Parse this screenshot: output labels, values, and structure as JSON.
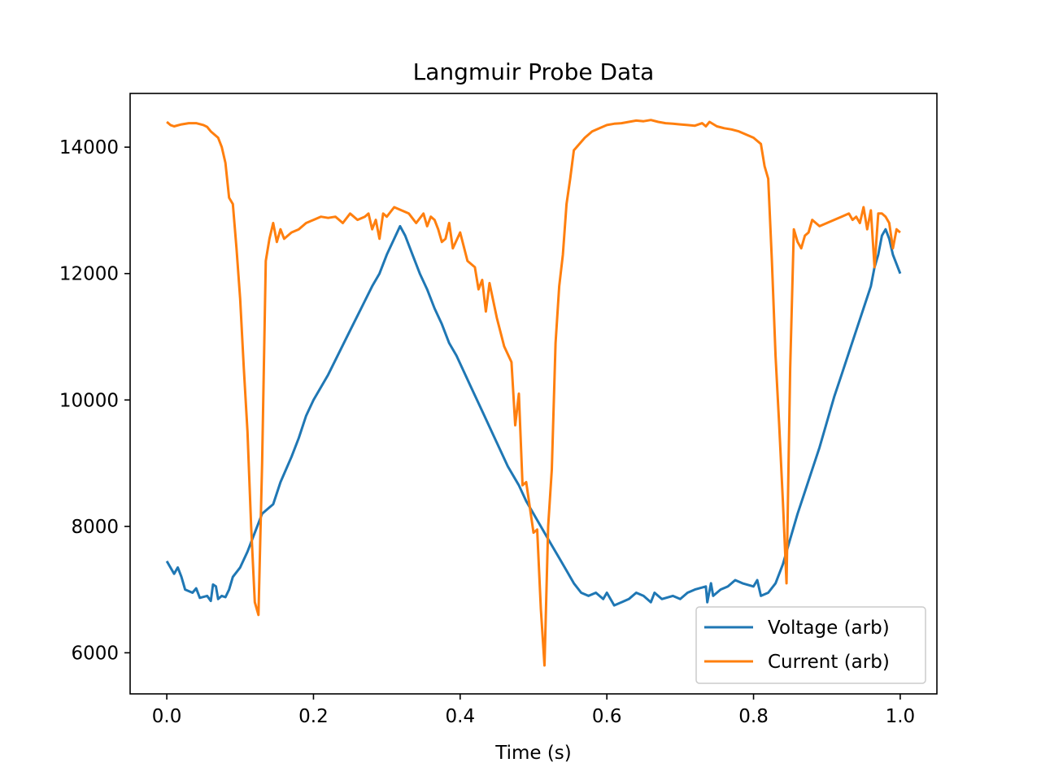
{
  "chart_data": {
    "type": "line",
    "title": "Langmuir Probe Data",
    "xlabel": "Time (s)",
    "ylabel": "",
    "xlim": [
      -0.05,
      1.05
    ],
    "ylim": [
      5350,
      14850
    ],
    "xticks": [
      0.0,
      0.2,
      0.4,
      0.6,
      0.8,
      1.0
    ],
    "xtick_labels": [
      "0.0",
      "0.2",
      "0.4",
      "0.6",
      "0.8",
      "1.0"
    ],
    "yticks": [
      6000,
      8000,
      10000,
      12000,
      14000
    ],
    "ytick_labels": [
      "6000",
      "8000",
      "10000",
      "12000",
      "14000"
    ],
    "grid": false,
    "legend": "lower right",
    "series": [
      {
        "name": "Voltage (arb)",
        "color": "#1f77b4",
        "points": [
          [
            0.0,
            7450
          ],
          [
            0.01,
            7250
          ],
          [
            0.015,
            7350
          ],
          [
            0.02,
            7200
          ],
          [
            0.025,
            7000
          ],
          [
            0.035,
            6950
          ],
          [
            0.04,
            7020
          ],
          [
            0.045,
            6870
          ],
          [
            0.055,
            6900
          ],
          [
            0.06,
            6820
          ],
          [
            0.063,
            7080
          ],
          [
            0.067,
            7050
          ],
          [
            0.07,
            6850
          ],
          [
            0.075,
            6900
          ],
          [
            0.08,
            6880
          ],
          [
            0.085,
            7000
          ],
          [
            0.09,
            7200
          ],
          [
            0.1,
            7350
          ],
          [
            0.11,
            7600
          ],
          [
            0.12,
            7900
          ],
          [
            0.13,
            8200
          ],
          [
            0.14,
            8300
          ],
          [
            0.145,
            8350
          ],
          [
            0.155,
            8700
          ],
          [
            0.17,
            9100
          ],
          [
            0.18,
            9400
          ],
          [
            0.19,
            9750
          ],
          [
            0.2,
            10000
          ],
          [
            0.22,
            10400
          ],
          [
            0.235,
            10750
          ],
          [
            0.25,
            11100
          ],
          [
            0.265,
            11450
          ],
          [
            0.28,
            11800
          ],
          [
            0.29,
            12000
          ],
          [
            0.3,
            12300
          ],
          [
            0.31,
            12550
          ],
          [
            0.318,
            12750
          ],
          [
            0.325,
            12600
          ],
          [
            0.335,
            12300
          ],
          [
            0.345,
            12000
          ],
          [
            0.355,
            11750
          ],
          [
            0.365,
            11450
          ],
          [
            0.375,
            11200
          ],
          [
            0.385,
            10900
          ],
          [
            0.395,
            10700
          ],
          [
            0.405,
            10450
          ],
          [
            0.415,
            10200
          ],
          [
            0.425,
            9950
          ],
          [
            0.435,
            9700
          ],
          [
            0.445,
            9450
          ],
          [
            0.455,
            9200
          ],
          [
            0.465,
            8950
          ],
          [
            0.48,
            8650
          ],
          [
            0.49,
            8400
          ],
          [
            0.5,
            8200
          ],
          [
            0.51,
            8000
          ],
          [
            0.525,
            7700
          ],
          [
            0.535,
            7500
          ],
          [
            0.545,
            7300
          ],
          [
            0.555,
            7100
          ],
          [
            0.565,
            6950
          ],
          [
            0.575,
            6900
          ],
          [
            0.585,
            6950
          ],
          [
            0.595,
            6850
          ],
          [
            0.6,
            6950
          ],
          [
            0.61,
            6750
          ],
          [
            0.62,
            6800
          ],
          [
            0.63,
            6850
          ],
          [
            0.64,
            6950
          ],
          [
            0.65,
            6900
          ],
          [
            0.66,
            6800
          ],
          [
            0.665,
            6950
          ],
          [
            0.675,
            6850
          ],
          [
            0.69,
            6900
          ],
          [
            0.7,
            6850
          ],
          [
            0.71,
            6950
          ],
          [
            0.72,
            7000
          ],
          [
            0.735,
            7050
          ],
          [
            0.737,
            6800
          ],
          [
            0.742,
            7100
          ],
          [
            0.745,
            6900
          ],
          [
            0.755,
            7000
          ],
          [
            0.765,
            7050
          ],
          [
            0.775,
            7150
          ],
          [
            0.785,
            7100
          ],
          [
            0.8,
            7050
          ],
          [
            0.805,
            7150
          ],
          [
            0.81,
            6900
          ],
          [
            0.82,
            6950
          ],
          [
            0.83,
            7100
          ],
          [
            0.84,
            7400
          ],
          [
            0.85,
            7800
          ],
          [
            0.86,
            8200
          ],
          [
            0.87,
            8550
          ],
          [
            0.88,
            8900
          ],
          [
            0.89,
            9250
          ],
          [
            0.9,
            9650
          ],
          [
            0.91,
            10050
          ],
          [
            0.92,
            10400
          ],
          [
            0.93,
            10750
          ],
          [
            0.94,
            11100
          ],
          [
            0.95,
            11450
          ],
          [
            0.96,
            11800
          ],
          [
            0.965,
            12100
          ],
          [
            0.97,
            12300
          ],
          [
            0.975,
            12600
          ],
          [
            0.98,
            12700
          ],
          [
            0.985,
            12550
          ],
          [
            0.99,
            12300
          ],
          [
            1.0,
            12000
          ]
        ]
      },
      {
        "name": "Current (arb)",
        "color": "#ff7f0e",
        "points": [
          [
            0.0,
            14400
          ],
          [
            0.005,
            14350
          ],
          [
            0.01,
            14330
          ],
          [
            0.02,
            14360
          ],
          [
            0.03,
            14380
          ],
          [
            0.04,
            14380
          ],
          [
            0.05,
            14350
          ],
          [
            0.055,
            14320
          ],
          [
            0.06,
            14250
          ],
          [
            0.065,
            14200
          ],
          [
            0.07,
            14150
          ],
          [
            0.075,
            14000
          ],
          [
            0.08,
            13750
          ],
          [
            0.085,
            13200
          ],
          [
            0.09,
            13100
          ],
          [
            0.095,
            12400
          ],
          [
            0.1,
            11600
          ],
          [
            0.105,
            10500
          ],
          [
            0.11,
            9500
          ],
          [
            0.115,
            8000
          ],
          [
            0.12,
            6800
          ],
          [
            0.125,
            6600
          ],
          [
            0.13,
            9000
          ],
          [
            0.135,
            12200
          ],
          [
            0.14,
            12550
          ],
          [
            0.145,
            12800
          ],
          [
            0.15,
            12500
          ],
          [
            0.155,
            12700
          ],
          [
            0.16,
            12550
          ],
          [
            0.17,
            12650
          ],
          [
            0.18,
            12700
          ],
          [
            0.19,
            12800
          ],
          [
            0.2,
            12850
          ],
          [
            0.21,
            12900
          ],
          [
            0.22,
            12880
          ],
          [
            0.23,
            12900
          ],
          [
            0.24,
            12800
          ],
          [
            0.25,
            12950
          ],
          [
            0.26,
            12850
          ],
          [
            0.27,
            12900
          ],
          [
            0.275,
            12950
          ],
          [
            0.28,
            12700
          ],
          [
            0.285,
            12850
          ],
          [
            0.29,
            12550
          ],
          [
            0.295,
            12950
          ],
          [
            0.3,
            12900
          ],
          [
            0.31,
            13050
          ],
          [
            0.32,
            13000
          ],
          [
            0.33,
            12950
          ],
          [
            0.34,
            12800
          ],
          [
            0.35,
            12950
          ],
          [
            0.355,
            12750
          ],
          [
            0.36,
            12900
          ],
          [
            0.365,
            12850
          ],
          [
            0.37,
            12700
          ],
          [
            0.375,
            12500
          ],
          [
            0.38,
            12550
          ],
          [
            0.385,
            12800
          ],
          [
            0.39,
            12400
          ],
          [
            0.4,
            12650
          ],
          [
            0.41,
            12200
          ],
          [
            0.42,
            12100
          ],
          [
            0.425,
            11750
          ],
          [
            0.43,
            11900
          ],
          [
            0.435,
            11400
          ],
          [
            0.44,
            11850
          ],
          [
            0.45,
            11300
          ],
          [
            0.46,
            10850
          ],
          [
            0.47,
            10600
          ],
          [
            0.475,
            9600
          ],
          [
            0.48,
            10100
          ],
          [
            0.485,
            8650
          ],
          [
            0.49,
            8700
          ],
          [
            0.5,
            7900
          ],
          [
            0.505,
            7950
          ],
          [
            0.51,
            6700
          ],
          [
            0.515,
            5800
          ],
          [
            0.52,
            8000
          ],
          [
            0.525,
            8900
          ],
          [
            0.53,
            10900
          ],
          [
            0.535,
            11800
          ],
          [
            0.54,
            12300
          ],
          [
            0.545,
            13100
          ],
          [
            0.55,
            13500
          ],
          [
            0.555,
            13950
          ],
          [
            0.57,
            14150
          ],
          [
            0.58,
            14250
          ],
          [
            0.59,
            14300
          ],
          [
            0.6,
            14350
          ],
          [
            0.61,
            14370
          ],
          [
            0.62,
            14380
          ],
          [
            0.63,
            14400
          ],
          [
            0.64,
            14420
          ],
          [
            0.65,
            14410
          ],
          [
            0.66,
            14430
          ],
          [
            0.67,
            14400
          ],
          [
            0.68,
            14380
          ],
          [
            0.69,
            14370
          ],
          [
            0.7,
            14360
          ],
          [
            0.71,
            14350
          ],
          [
            0.72,
            14340
          ],
          [
            0.73,
            14380
          ],
          [
            0.735,
            14330
          ],
          [
            0.74,
            14400
          ],
          [
            0.75,
            14330
          ],
          [
            0.76,
            14300
          ],
          [
            0.77,
            14280
          ],
          [
            0.78,
            14250
          ],
          [
            0.79,
            14200
          ],
          [
            0.8,
            14150
          ],
          [
            0.81,
            14050
          ],
          [
            0.815,
            13700
          ],
          [
            0.82,
            13500
          ],
          [
            0.825,
            12200
          ],
          [
            0.83,
            10700
          ],
          [
            0.835,
            9600
          ],
          [
            0.84,
            8400
          ],
          [
            0.845,
            7100
          ],
          [
            0.85,
            10500
          ],
          [
            0.855,
            12700
          ],
          [
            0.86,
            12500
          ],
          [
            0.865,
            12400
          ],
          [
            0.87,
            12600
          ],
          [
            0.875,
            12650
          ],
          [
            0.88,
            12850
          ],
          [
            0.89,
            12750
          ],
          [
            0.9,
            12800
          ],
          [
            0.91,
            12850
          ],
          [
            0.92,
            12900
          ],
          [
            0.93,
            12950
          ],
          [
            0.935,
            12850
          ],
          [
            0.94,
            12900
          ],
          [
            0.945,
            12800
          ],
          [
            0.95,
            13050
          ],
          [
            0.955,
            12700
          ],
          [
            0.96,
            13000
          ],
          [
            0.965,
            12100
          ],
          [
            0.97,
            12950
          ],
          [
            0.975,
            12950
          ],
          [
            0.98,
            12900
          ],
          [
            0.985,
            12800
          ],
          [
            0.99,
            12400
          ],
          [
            0.995,
            12700
          ],
          [
            1.0,
            12650
          ]
        ]
      }
    ]
  }
}
